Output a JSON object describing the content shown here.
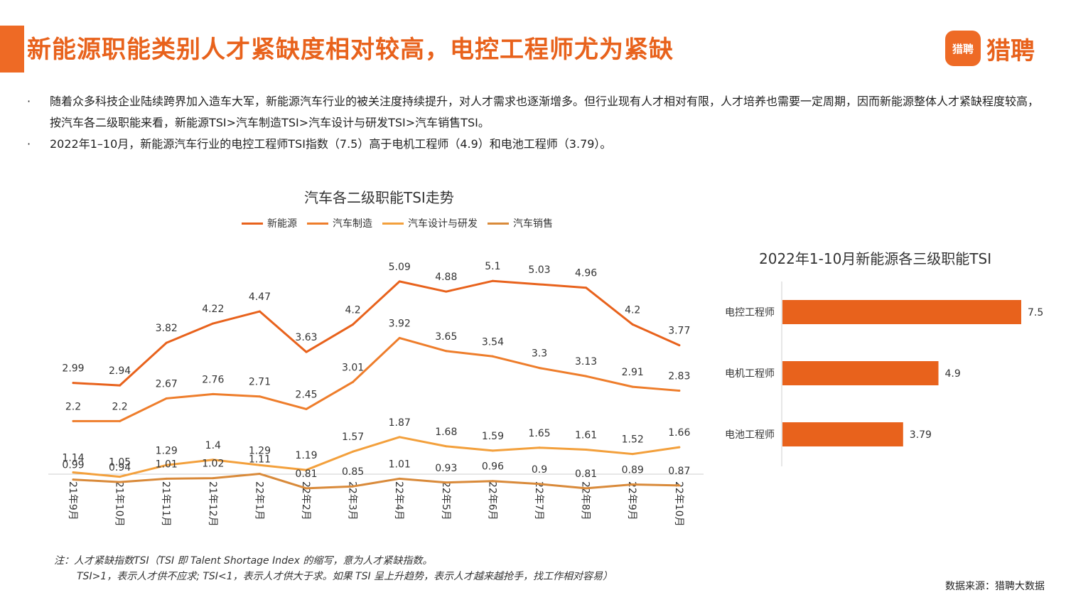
{
  "header": {
    "title": "新能源职能类别人才紧缺度相对较高，电控工程师尤为紧缺",
    "logo_badge": "猎聘",
    "logo_text": "猎聘"
  },
  "bullets": [
    {
      "dot": "·",
      "text": "随着众多科技企业陆续跨界加入造车大军，新能源汽车行业的被关注度持续提升，对人才需求也逐渐增多。但行业现有人才相对有限，人才培养也需要一定周期，因而新能源整体人才紧缺程度较高，按汽车各二级职能来看，新能源TSI>汽车制造TSI>汽车设计与研发TSI>汽车销售TSI。"
    },
    {
      "dot": "·",
      "text": "2022年1–10月，新能源汽车行业的电控工程师TSI指数（7.5）高于电机工程师（4.9）和电池工程师（3.79）。"
    }
  ],
  "note": {
    "line1": "注：人才紧缺指数TSI（TSI 即 Talent Shortage Index 的缩写，意为人才紧缺指数。",
    "line2": "TSI>1，表示人才供不应求; TSI<1，表示人才供大于求。如果 TSI 呈上升趋势，表示人才越来越抢手，找工作相对容易）"
  },
  "source": "数据来源：猎聘大数据",
  "chart_data": [
    {
      "type": "line",
      "title": "汽车各二级职能TSI走势",
      "categories": [
        "21年9月",
        "21年10月",
        "21年11月",
        "21年12月",
        "22年1月",
        "22年2月",
        "22年3月",
        "22年4月",
        "22年5月",
        "22年6月",
        "22年7月",
        "22年8月",
        "22年9月",
        "22年10月"
      ],
      "series": [
        {
          "name": "新能源",
          "color": "#e8621c",
          "values": [
            2.99,
            2.94,
            3.82,
            4.22,
            4.47,
            3.63,
            4.2,
            5.09,
            4.88,
            5.1,
            5.03,
            4.96,
            4.2,
            3.77
          ]
        },
        {
          "name": "汽车制造",
          "color": "#ee7d2b",
          "values": [
            2.2,
            2.2,
            2.67,
            2.76,
            2.71,
            2.45,
            3.01,
            3.92,
            3.65,
            3.54,
            3.3,
            3.13,
            2.91,
            2.83
          ]
        },
        {
          "name": "汽车设计与研发",
          "color": "#f3a03c",
          "values": [
            1.14,
            1.05,
            1.29,
            1.4,
            1.29,
            1.19,
            1.57,
            1.87,
            1.68,
            1.59,
            1.65,
            1.61,
            1.52,
            1.66
          ]
        },
        {
          "name": "汽车销售",
          "color": "#d98a3a",
          "values": [
            0.99,
            0.94,
            1.01,
            1.02,
            1.11,
            0.81,
            0.85,
            1.01,
            0.93,
            0.96,
            0.9,
            0.81,
            0.89,
            0.87
          ]
        }
      ],
      "legend_position": "top",
      "ylim": [
        0,
        5.6
      ],
      "grid": false
    },
    {
      "type": "bar",
      "orientation": "horizontal",
      "title": "2022年1-10月新能源各三级职能TSI",
      "categories": [
        "电控工程师",
        "电机工程师",
        "电池工程师"
      ],
      "values": [
        7.5,
        4.9,
        3.79
      ],
      "color": "#e8621c",
      "xlim": [
        0,
        7.5
      ],
      "grid": false
    }
  ]
}
